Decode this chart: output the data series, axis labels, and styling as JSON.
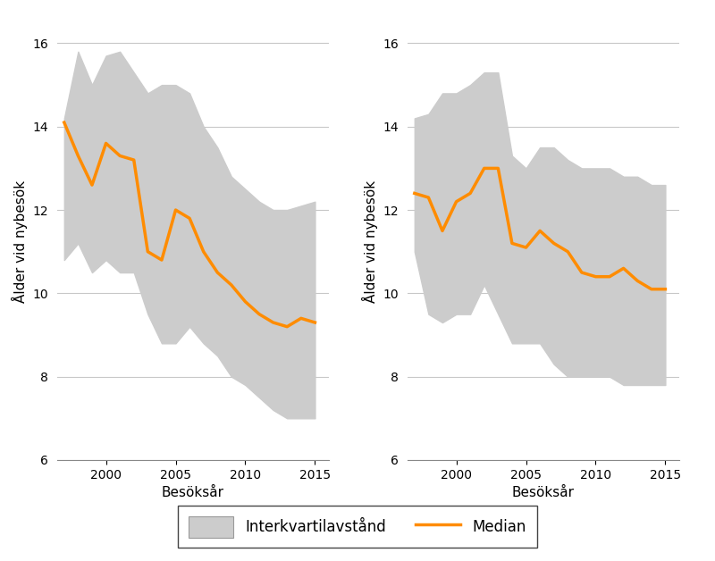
{
  "left_years": [
    1997,
    1998,
    1999,
    2000,
    2001,
    2002,
    2003,
    2004,
    2005,
    2006,
    2007,
    2008,
    2009,
    2010,
    2011,
    2012,
    2013,
    2014,
    2015
  ],
  "left_median": [
    14.1,
    13.3,
    12.6,
    13.6,
    13.3,
    13.2,
    11.0,
    10.8,
    12.0,
    11.8,
    11.0,
    10.5,
    10.2,
    9.8,
    9.5,
    9.3,
    9.2,
    9.4,
    9.3
  ],
  "left_q1": [
    10.8,
    11.2,
    10.5,
    10.8,
    10.5,
    10.5,
    9.5,
    8.8,
    8.8,
    9.2,
    8.8,
    8.5,
    8.0,
    7.8,
    7.5,
    7.2,
    7.0,
    7.0,
    7.0
  ],
  "left_q3": [
    14.2,
    15.8,
    15.0,
    15.7,
    15.8,
    15.3,
    14.8,
    15.0,
    15.0,
    14.8,
    14.0,
    13.5,
    12.8,
    12.5,
    12.2,
    12.0,
    12.0,
    12.1,
    12.2
  ],
  "right_years": [
    1997,
    1998,
    1999,
    2000,
    2001,
    2002,
    2003,
    2004,
    2005,
    2006,
    2007,
    2008,
    2009,
    2010,
    2011,
    2012,
    2013,
    2014,
    2015
  ],
  "right_median": [
    12.4,
    12.3,
    11.5,
    12.2,
    12.4,
    13.0,
    13.0,
    11.2,
    11.1,
    11.5,
    11.2,
    11.0,
    10.5,
    10.4,
    10.4,
    10.6,
    10.3,
    10.1,
    10.1
  ],
  "right_q1": [
    11.0,
    9.5,
    9.3,
    9.5,
    9.5,
    10.2,
    9.5,
    8.8,
    8.8,
    8.8,
    8.3,
    8.0,
    8.0,
    8.0,
    8.0,
    7.8,
    7.8,
    7.8,
    7.8
  ],
  "right_q3": [
    14.2,
    14.3,
    14.8,
    14.8,
    15.0,
    15.3,
    15.3,
    13.3,
    13.0,
    13.5,
    13.5,
    13.2,
    13.0,
    13.0,
    13.0,
    12.8,
    12.8,
    12.6,
    12.6
  ],
  "ylim": [
    6,
    16.5
  ],
  "yticks": [
    6,
    8,
    10,
    12,
    14,
    16
  ],
  "xticks": [
    2000,
    2005,
    2010,
    2015
  ],
  "xlabel": "Besöksår",
  "ylabel": "Ålder vid nybesök",
  "fill_color": "#cccccc",
  "line_color": "#FF8C00",
  "line_width": 2.5,
  "legend_fill_label": "Interkvartilavstånd",
  "legend_line_label": "Median",
  "background_color": "#ffffff",
  "grid_color": "#c8c8c8"
}
